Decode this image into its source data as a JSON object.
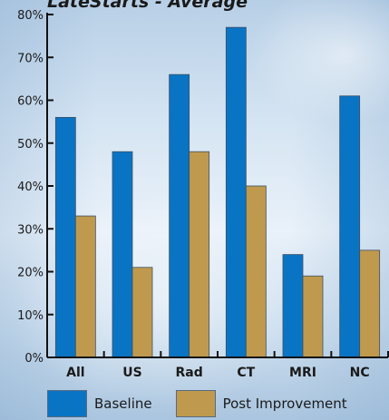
{
  "chart_data": {
    "type": "bar",
    "title": "LateStarts - Average",
    "categories": [
      "All",
      "US",
      "Rad",
      "CT",
      "MRI",
      "NC"
    ],
    "series": [
      {
        "name": "Baseline",
        "color": "#0a74c4",
        "values": [
          56,
          48,
          66,
          77,
          24,
          61
        ]
      },
      {
        "name": "Post Improvement",
        "color": "#bf9a4e",
        "values": [
          33,
          21,
          48,
          40,
          19,
          25
        ]
      }
    ],
    "ylim": [
      0,
      80
    ],
    "yticks": [
      0,
      10,
      20,
      30,
      40,
      50,
      60,
      70,
      80
    ],
    "ytick_suffix": "%",
    "grid": false,
    "legend_position": "bottom"
  }
}
